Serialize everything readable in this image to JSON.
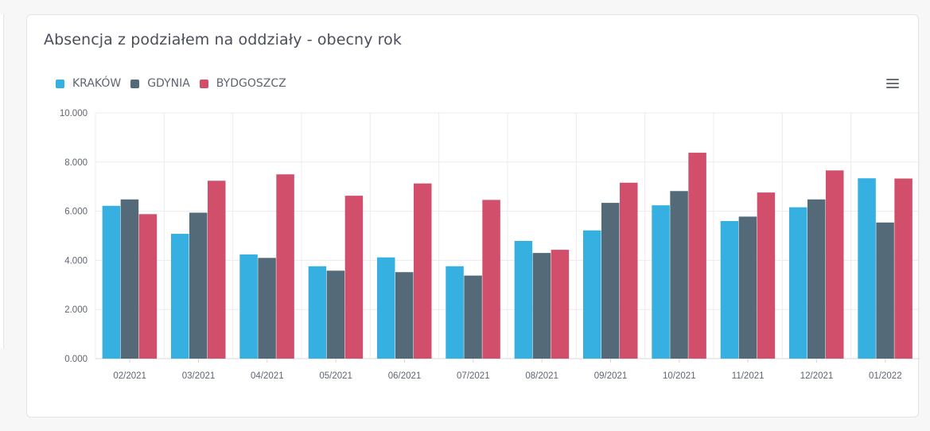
{
  "title": "Absencja z podziałem na oddziały - obecny rok",
  "menu_icon": "hamburger-menu-icon",
  "colors": {
    "KRAKÓW": "#36b0e0",
    "GDYNIA": "#546a78",
    "BYDGOSZCZ": "#d14f6b"
  },
  "chart_data": {
    "type": "bar",
    "categories": [
      "02/2021",
      "03/2021",
      "04/2021",
      "05/2021",
      "06/2021",
      "07/2021",
      "08/2021",
      "09/2021",
      "10/2021",
      "11/2021",
      "12/2021",
      "01/2022"
    ],
    "series": [
      {
        "name": "KRAKÓW",
        "values": [
          6220,
          5080,
          4240,
          3760,
          4120,
          3760,
          4790,
          5220,
          6240,
          5600,
          6160,
          7340
        ]
      },
      {
        "name": "GDYNIA",
        "values": [
          6480,
          5940,
          4100,
          3580,
          3520,
          3380,
          4300,
          6340,
          6820,
          5780,
          6480,
          5540
        ]
      },
      {
        "name": "BYDGOSZCZ",
        "values": [
          5880,
          7240,
          7500,
          6630,
          7130,
          6460,
          4430,
          7160,
          8380,
          6760,
          7660,
          7330
        ]
      }
    ],
    "ylim": [
      0,
      10000
    ],
    "yticks": [
      "0.000",
      "2.000",
      "4.000",
      "6.000",
      "8.000",
      "10.000"
    ],
    "legend_position": "top-left",
    "grid": true
  }
}
